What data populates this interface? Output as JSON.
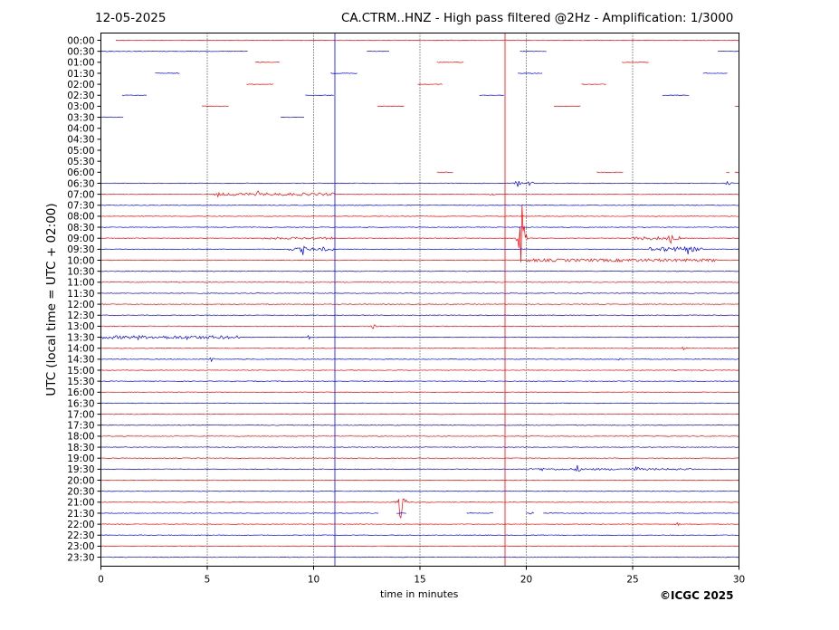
{
  "header": {
    "date": "12-05-2025",
    "title": "CA.CTRM..HNZ - High pass filtered @2Hz - Amplification: 1/3000"
  },
  "footer": {
    "copyright": "©ICGC 2025"
  },
  "chart_data": {
    "type": "line",
    "xlabel": "time in minutes",
    "ylabel": "UTC (local time = UTC + 02:00)",
    "xlim": [
      0,
      30
    ],
    "x_ticks": [
      "0",
      "5",
      "10",
      "15",
      "20",
      "25",
      "30"
    ],
    "y_ticks": [
      "00:00",
      "00:30",
      "01:00",
      "01:30",
      "02:00",
      "02:30",
      "03:00",
      "03:30",
      "04:00",
      "04:30",
      "05:00",
      "05:30",
      "06:00",
      "06:30",
      "07:00",
      "07:30",
      "08:00",
      "08:30",
      "09:00",
      "09:30",
      "10:00",
      "10:30",
      "11:00",
      "11:30",
      "12:00",
      "12:30",
      "13:00",
      "13:30",
      "14:00",
      "14:30",
      "15:00",
      "15:30",
      "16:00",
      "16:30",
      "17:00",
      "17:30",
      "18:00",
      "18:30",
      "19:00",
      "19:30",
      "20:00",
      "20:30",
      "21:00",
      "21:30",
      "22:00",
      "22:30",
      "23:00",
      "23:30"
    ],
    "grid": "vertical dotted",
    "colors": {
      "hour": "#ff0000",
      "half_hour": "#0000ff"
    },
    "gaps": {
      "00:00": [
        [
          0,
          0.7
        ]
      ],
      "00:30": [
        [
          6.9,
          12.5
        ],
        [
          13.6,
          19.7
        ],
        [
          21.0,
          29.0
        ]
      ],
      "01:00": [
        [
          0,
          7.2
        ],
        [
          8.4,
          15.8
        ],
        [
          17.1,
          24.5
        ],
        [
          25.8,
          30
        ]
      ],
      "01:30": [
        [
          0,
          2.5
        ],
        [
          3.7,
          10.8
        ],
        [
          12.1,
          19.6
        ],
        [
          20.8,
          28.3
        ],
        [
          29.5,
          30
        ]
      ],
      "02:00": [
        [
          0,
          6.8
        ],
        [
          8.1,
          14.9
        ],
        [
          16.1,
          22.6
        ],
        [
          23.8,
          30
        ]
      ],
      "02:30": [
        [
          0,
          1.0
        ],
        [
          2.2,
          9.6
        ],
        [
          11.0,
          17.8
        ],
        [
          19.0,
          26.4
        ],
        [
          27.7,
          30
        ]
      ],
      "03:00": [
        [
          0,
          4.7
        ],
        [
          6.0,
          13.0
        ],
        [
          14.3,
          21.3
        ],
        [
          22.6,
          29.8
        ]
      ],
      "03:30": [
        [
          1.1,
          8.4
        ],
        [
          9.6,
          30
        ]
      ],
      "04:00": [
        [
          0,
          30
        ]
      ],
      "04:30": [
        [
          0,
          30
        ]
      ],
      "05:00": [
        [
          0,
          30
        ]
      ],
      "05:30": [
        [
          0,
          30
        ]
      ],
      "06:00": [
        [
          0,
          15.8
        ],
        [
          16.6,
          23.3
        ],
        [
          24.6,
          29.4
        ],
        [
          29.6,
          29.8
        ]
      ],
      "21:30": [
        [
          13.1,
          13.9
        ],
        [
          14.4,
          17.2
        ],
        [
          18.5,
          20.0
        ],
        [
          20.4,
          20.8
        ]
      ]
    },
    "events": [
      {
        "row": "06:30",
        "x": 19.6,
        "amp": 5
      },
      {
        "row": "06:30",
        "x": 20.2,
        "amp": 4
      },
      {
        "row": "06:30",
        "x": 29.5,
        "amp": 3
      },
      {
        "row": "07:00",
        "x": 5.5,
        "amp": 3
      },
      {
        "row": "07:00",
        "x": 6.4,
        "amp": 4
      },
      {
        "row": "07:00",
        "x": 7.4,
        "amp": 4
      },
      {
        "row": "07:00",
        "x": 9.3,
        "amp": 2
      },
      {
        "row": "07:00",
        "x": 18.4,
        "amp": 2
      },
      {
        "row": "09:00",
        "x": 19.8,
        "amp": 42
      },
      {
        "row": "09:00",
        "x": 26.8,
        "amp": 7
      },
      {
        "row": "09:30",
        "x": 9.5,
        "amp": 7
      },
      {
        "row": "09:30",
        "x": 10.5,
        "amp": 4
      },
      {
        "row": "09:30",
        "x": 26.3,
        "amp": 5
      },
      {
        "row": "09:30",
        "x": 27.6,
        "amp": 6
      },
      {
        "row": "13:00",
        "x": 12.8,
        "amp": 3
      },
      {
        "row": "13:30",
        "x": 1.7,
        "amp": 5
      },
      {
        "row": "13:30",
        "x": 3.2,
        "amp": 3
      },
      {
        "row": "13:30",
        "x": 4.0,
        "amp": 4
      },
      {
        "row": "13:30",
        "x": 9.8,
        "amp": 3
      },
      {
        "row": "14:00",
        "x": 27.4,
        "amp": 3
      },
      {
        "row": "14:30",
        "x": 5.2,
        "amp": 3
      },
      {
        "row": "14:30",
        "x": 24.4,
        "amp": 2
      },
      {
        "row": "19:30",
        "x": 20.7,
        "amp": 3
      },
      {
        "row": "19:30",
        "x": 22.4,
        "amp": 5
      },
      {
        "row": "19:30",
        "x": 25.2,
        "amp": 5
      },
      {
        "row": "21:00",
        "x": 14.1,
        "amp": 26
      },
      {
        "row": "21:30",
        "x": 20.3,
        "amp": 3
      },
      {
        "row": "22:00",
        "x": 27.1,
        "amp": 2
      }
    ],
    "spans": [
      {
        "row": "07:00",
        "from": 5.3,
        "to": 11.0,
        "amp": 1.5
      },
      {
        "row": "09:00",
        "from": 7.5,
        "to": 11.0,
        "amp": 1.2
      },
      {
        "row": "09:00",
        "from": 25.0,
        "to": 27.3,
        "amp": 1.8
      },
      {
        "row": "09:30",
        "from": 8.8,
        "to": 11.0,
        "amp": 1.5
      },
      {
        "row": "09:30",
        "from": 25.8,
        "to": 28.3,
        "amp": 2.5
      },
      {
        "row": "10:00",
        "from": 20.0,
        "to": 29.0,
        "amp": 1.6
      },
      {
        "row": "13:30",
        "from": 0.1,
        "to": 6.5,
        "amp": 1.8
      },
      {
        "row": "19:30",
        "from": 20.0,
        "to": 28.0,
        "amp": 1.0
      }
    ],
    "vertical_lines": [
      {
        "x": 11.0,
        "from": "00:00",
        "to": "23:30",
        "color": "#0000ff"
      },
      {
        "x": 19.0,
        "from": "00:00",
        "to": "23:30",
        "color": "#ff0000"
      }
    ]
  }
}
